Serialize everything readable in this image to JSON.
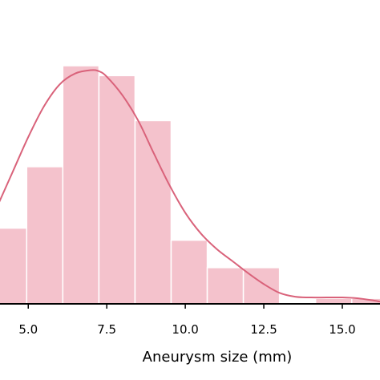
{
  "chart_data": {
    "type": "bar",
    "subtype": "histogram-with-kde",
    "title": "",
    "xlabel": "Aneurysm size (mm)",
    "ylabel": "",
    "xlim": [
      4.1,
      16.2
    ],
    "ylim": [
      0,
      0.255
    ],
    "x_ticks": [
      5.0,
      7.5,
      10.0,
      12.5,
      15.0
    ],
    "x_tick_labels": [
      "5.0",
      "7.5",
      "10.0",
      "12.5",
      "15.0"
    ],
    "bins": [
      {
        "x0": 3.8,
        "x1": 4.95,
        "value": 0.069
      },
      {
        "x0": 4.95,
        "x1": 6.1,
        "value": 0.125
      },
      {
        "x0": 6.1,
        "x1": 7.25,
        "value": 0.217
      },
      {
        "x0": 7.25,
        "x1": 8.4,
        "value": 0.208
      },
      {
        "x0": 8.4,
        "x1": 9.55,
        "value": 0.167
      },
      {
        "x0": 9.55,
        "x1": 10.7,
        "value": 0.058
      },
      {
        "x0": 10.7,
        "x1": 11.85,
        "value": 0.033
      },
      {
        "x0": 11.85,
        "x1": 13.0,
        "value": 0.033
      },
      {
        "x0": 13.0,
        "x1": 14.15,
        "value": 0.0
      },
      {
        "x0": 14.15,
        "x1": 15.3,
        "value": 0.005
      },
      {
        "x0": 15.3,
        "x1": 16.45,
        "value": 0.005
      }
    ],
    "kde": {
      "x": [
        4.0,
        4.5,
        5.0,
        5.5,
        6.0,
        6.5,
        7.0,
        7.25,
        7.5,
        8.0,
        8.5,
        9.0,
        9.5,
        10.0,
        10.5,
        11.0,
        11.5,
        12.0,
        12.5,
        13.0,
        13.5,
        14.0,
        14.5,
        15.0,
        15.5,
        16.0,
        16.2
      ],
      "y": [
        0.088,
        0.12,
        0.152,
        0.18,
        0.2,
        0.21,
        0.213,
        0.212,
        0.207,
        0.19,
        0.167,
        0.137,
        0.108,
        0.083,
        0.064,
        0.05,
        0.039,
        0.028,
        0.018,
        0.01,
        0.0065,
        0.0058,
        0.0058,
        0.0058,
        0.005,
        0.003,
        0.002
      ]
    },
    "colors": {
      "bar_fill": "#f4c2cc",
      "bar_edge": "#ffffff",
      "kde_line": "#d9627a",
      "axis": "#000000"
    },
    "grid": false,
    "legend": "none"
  }
}
